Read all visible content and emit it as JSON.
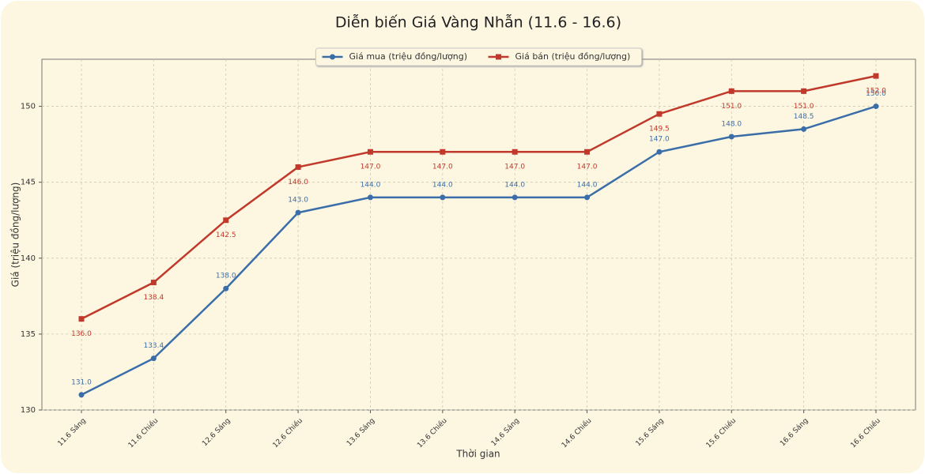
{
  "chart_data": {
    "type": "line",
    "title": "Diễn biến Giá Vàng Nhẫn (11.6 - 16.6)",
    "x_label": "Thời gian",
    "y_label": "Giá (triệu đồng/lượng)",
    "categories": [
      "11.6 Sáng",
      "11.6 Chiều",
      "12.6 Sáng",
      "12.6 Chiều",
      "13.6 Sáng",
      "13.6 Chiều",
      "14.6 Sáng",
      "14.6 Chiều",
      "15.6 Sáng",
      "15.6 Chiều",
      "16.6 Sáng",
      "16.6 Chiều"
    ],
    "series": [
      {
        "name": "Giá mua (triệu đồng/lượng)",
        "color": "#3b6ea8",
        "marker": "circle",
        "values": [
          131.0,
          133.4,
          138.0,
          143.0,
          144.0,
          144.0,
          144.0,
          144.0,
          147.0,
          148.0,
          148.5,
          150.0
        ],
        "value_labels": [
          "131.0",
          "133.4",
          "138.0",
          "143.0",
          "144.0",
          "144.0",
          "144.0",
          "144.0",
          "147.0",
          "148.0",
          "148.5",
          "150.0"
        ]
      },
      {
        "name": "Giá bán (triệu đồng/lượng)",
        "color": "#c0392b",
        "marker": "square",
        "values": [
          136.0,
          138.4,
          142.5,
          146.0,
          147.0,
          147.0,
          147.0,
          147.0,
          149.5,
          151.0,
          151.0,
          152.0
        ],
        "value_labels": [
          "136.0",
          "138.4",
          "142.5",
          "146.0",
          "147.0",
          "147.0",
          "147.0",
          "147.0",
          "149.5",
          "151.0",
          "151.0",
          "152.0"
        ]
      }
    ],
    "ylim": [
      130,
      153.1
    ],
    "yticks": [
      130,
      135,
      140,
      145,
      150
    ],
    "grid": true,
    "legend": "upper center"
  }
}
